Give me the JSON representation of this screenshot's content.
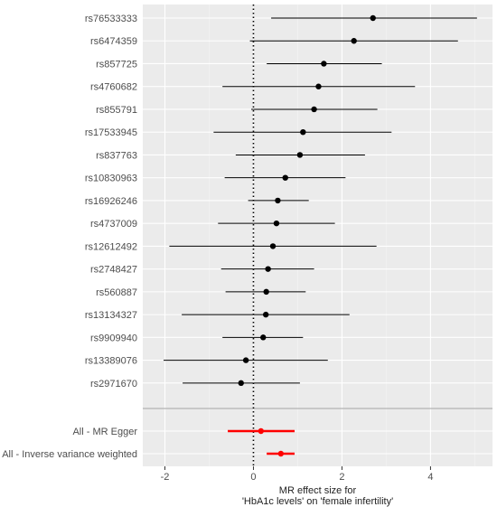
{
  "chart_data": {
    "type": "forest",
    "xlabel_lines": [
      "MR effect size for",
      "'HbA1c levels' on 'female infertility'"
    ],
    "ylabel": "",
    "xlim": [
      -2.5,
      5.4
    ],
    "x_ticks": [
      -2,
      0,
      2,
      4
    ],
    "x_tick_labels": [
      "-2",
      "0",
      "2",
      "4"
    ],
    "reference_line": 0,
    "grid": true,
    "snps": [
      {
        "label": "rs76533333",
        "b": 2.7,
        "lo": 0.4,
        "hi": 5.05
      },
      {
        "label": "rs6474359",
        "b": 2.27,
        "lo": -0.08,
        "hi": 4.62
      },
      {
        "label": "rs857725",
        "b": 1.59,
        "lo": 0.3,
        "hi": 2.9
      },
      {
        "label": "rs4760682",
        "b": 1.47,
        "lo": -0.7,
        "hi": 3.65
      },
      {
        "label": "rs855791",
        "b": 1.37,
        "lo": -0.05,
        "hi": 2.8
      },
      {
        "label": "rs17533945",
        "b": 1.12,
        "lo": -0.9,
        "hi": 3.12
      },
      {
        "label": "rs837763",
        "b": 1.05,
        "lo": -0.4,
        "hi": 2.52
      },
      {
        "label": "rs10830963",
        "b": 0.72,
        "lo": -0.65,
        "hi": 2.08
      },
      {
        "label": "rs16926246",
        "b": 0.55,
        "lo": -0.12,
        "hi": 1.25
      },
      {
        "label": "rs4737009",
        "b": 0.52,
        "lo": -0.8,
        "hi": 1.84
      },
      {
        "label": "rs12612492",
        "b": 0.44,
        "lo": -1.9,
        "hi": 2.78
      },
      {
        "label": "rs2748427",
        "b": 0.33,
        "lo": -0.73,
        "hi": 1.37
      },
      {
        "label": "rs560887",
        "b": 0.29,
        "lo": -0.63,
        "hi": 1.18
      },
      {
        "label": "rs13134327",
        "b": 0.28,
        "lo": -1.62,
        "hi": 2.17
      },
      {
        "label": "rs9909940",
        "b": 0.22,
        "lo": -0.7,
        "hi": 1.12
      },
      {
        "label": "rs13389076",
        "b": -0.17,
        "lo": -2.03,
        "hi": 1.68
      },
      {
        "label": "rs2971670",
        "b": -0.28,
        "lo": -1.6,
        "hi": 1.05
      }
    ],
    "summary": [
      {
        "label": "All - MR Egger",
        "b": 0.17,
        "lo": -0.58,
        "hi": 0.93
      },
      {
        "label": "All - Inverse variance weighted",
        "b": 0.62,
        "lo": 0.3,
        "hi": 0.93
      }
    ],
    "colors": {
      "panel_background": "#ebebeb",
      "grid_major": "#ffffff",
      "snp_points": "#000000",
      "summary_points": "#ff0000",
      "separator": "#bdbdbd"
    }
  }
}
